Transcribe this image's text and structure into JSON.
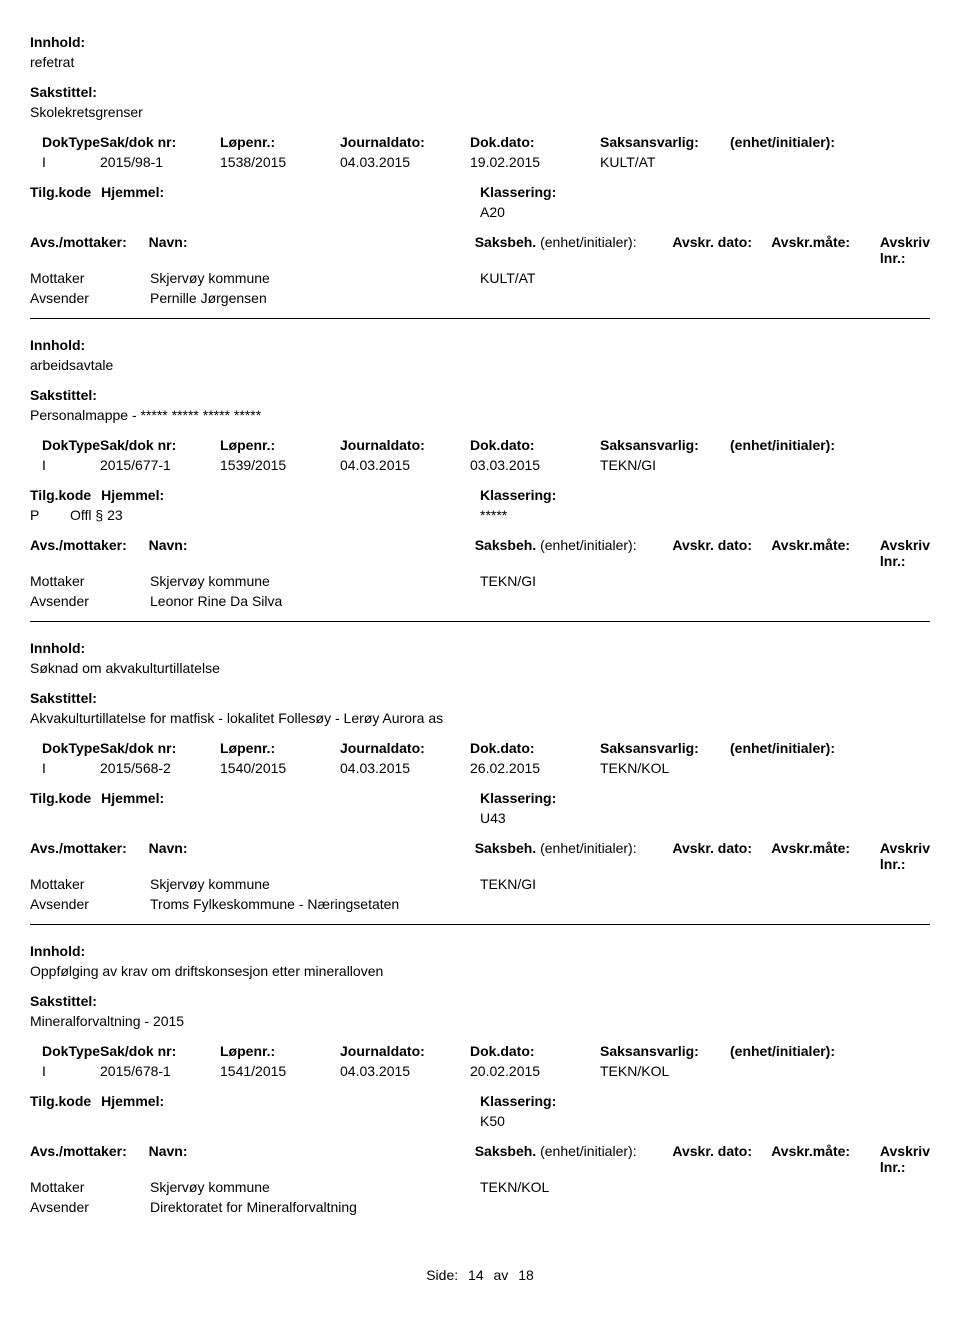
{
  "labels": {
    "innhold": "Innhold:",
    "sakstittel": "Sakstittel:",
    "doktype": "DokType",
    "sakdoknr": "Sak/dok nr:",
    "lopenr": "Løpenr.:",
    "journaldato": "Journaldato:",
    "dokdato": "Dok.dato:",
    "saksansvarlig": "Saksansvarlig:",
    "enhetinit": "(enhet/initialer):",
    "tilgkode": "Tilg.kode",
    "hjemmel": "Hjemmel:",
    "klassering": "Klassering:",
    "avsmottaker": "Avs./mottaker:",
    "navn": "Navn:",
    "saksbeh": "Saksbeh.",
    "saksbeh_enhet": "(enhet/initialer):",
    "avskrdato": "Avskr. dato:",
    "avskrmate": "Avskr.måte:",
    "avskrivlnr": "Avskriv lnr.:",
    "mottaker": "Mottaker",
    "avsender": "Avsender",
    "side": "Side:",
    "av": "av"
  },
  "records": [
    {
      "innhold": "refetrat",
      "sakstittel": "Skolekretsgrenser",
      "doktype": "I",
      "sakdoknr": "2015/98-1",
      "lopenr": "1538/2015",
      "journaldato": "04.03.2015",
      "dokdato": "19.02.2015",
      "saksansvarlig": "KULT/AT",
      "tilgkode": "",
      "hjemmel": "",
      "klassering": "A20",
      "saksbeh": "KULT/AT",
      "mottaker": "Skjervøy kommune",
      "avsender": "Pernille Jørgensen"
    },
    {
      "innhold": "arbeidsavtale",
      "sakstittel": "Personalmappe -  ***** ***** ***** *****",
      "doktype": "I",
      "sakdoknr": "2015/677-1",
      "lopenr": "1539/2015",
      "journaldato": "04.03.2015",
      "dokdato": "03.03.2015",
      "saksansvarlig": "TEKN/GI",
      "tilgkode": "P",
      "hjemmel": "Offl § 23",
      "klassering": "*****",
      "saksbeh": "TEKN/GI",
      "mottaker": "Skjervøy kommune",
      "avsender": "Leonor Rine Da Silva"
    },
    {
      "innhold": "Søknad om akvakulturtillatelse",
      "sakstittel": "Akvakulturtillatelse for matfisk - lokalitet Follesøy - Lerøy Aurora as",
      "doktype": "I",
      "sakdoknr": "2015/568-2",
      "lopenr": "1540/2015",
      "journaldato": "04.03.2015",
      "dokdato": "26.02.2015",
      "saksansvarlig": "TEKN/KOL",
      "tilgkode": "",
      "hjemmel": "",
      "klassering": "U43",
      "saksbeh": "TEKN/GI",
      "mottaker": "Skjervøy kommune",
      "avsender": "Troms Fylkeskommune - Næringsetaten"
    },
    {
      "innhold": "Oppfølging av krav om driftskonsesjon etter mineralloven",
      "sakstittel": "Mineralforvaltning - 2015",
      "doktype": "I",
      "sakdoknr": "2015/678-1",
      "lopenr": "1541/2015",
      "journaldato": "04.03.2015",
      "dokdato": "20.02.2015",
      "saksansvarlig": "TEKN/KOL",
      "tilgkode": "",
      "hjemmel": "",
      "klassering": "K50",
      "saksbeh": "TEKN/KOL",
      "mottaker": "Skjervøy kommune",
      "avsender": "Direktoratet for Mineralforvaltning"
    }
  ],
  "page": {
    "current": "14",
    "total": "18"
  }
}
